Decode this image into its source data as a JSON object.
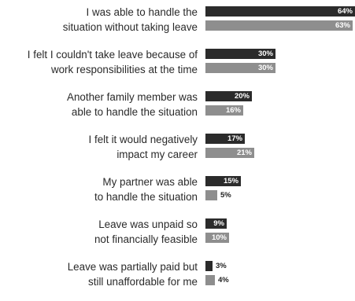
{
  "chart_data": {
    "type": "bar",
    "orientation": "horizontal",
    "categories": [
      "I was able to handle the situation without taking leave",
      "I felt I couldn't take leave because of work responsibilities at the time",
      "Another family member was able to handle the situation",
      "I felt it would negatively impact my career",
      "My partner was able to handle the situation",
      "Leave was unpaid so not financially feasible",
      "Leave was partially paid but still unaffordable for me"
    ],
    "category_lines": [
      [
        "I was able to handle the",
        "situation without taking leave"
      ],
      [
        "I felt I couldn't take leave because of",
        "work responsibilities at the time"
      ],
      [
        "Another family member was",
        "able to handle the situation"
      ],
      [
        "I felt it would negatively",
        "impact my career"
      ],
      [
        "My partner was able",
        "to handle the situation"
      ],
      [
        "Leave was unpaid so",
        "not financially feasible"
      ],
      [
        "Leave was partially paid but",
        "still unaffordable for me"
      ]
    ],
    "series": [
      {
        "values": [
          64,
          30,
          20,
          17,
          15,
          9,
          3
        ],
        "labels": [
          "64%",
          "30%",
          "20%",
          "17%",
          "15%",
          "9%",
          "3%"
        ],
        "color": "#2b2b2b"
      },
      {
        "values": [
          63,
          30,
          16,
          21,
          5,
          10,
          4
        ],
        "labels": [
          "63%",
          "30%",
          "16%",
          "21%",
          "5%",
          "10%",
          "4%"
        ],
        "color": "#8e8e8e"
      }
    ],
    "xlim": [
      0,
      64
    ],
    "xlabel": "",
    "ylabel": "",
    "title": "",
    "grid": false,
    "legend": false
  }
}
